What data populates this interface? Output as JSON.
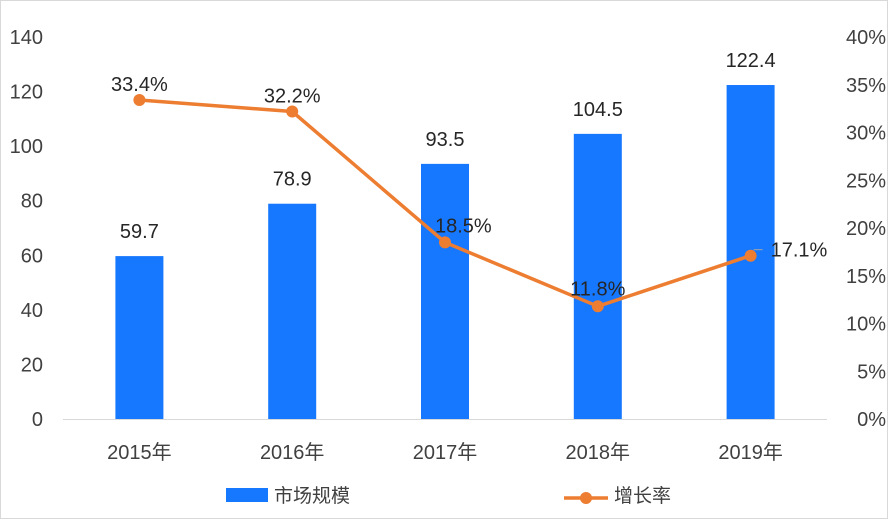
{
  "chart_data": {
    "type": "bar",
    "categories": [
      "2015年",
      "2016年",
      "2017年",
      "2018年",
      "2019年"
    ],
    "series": [
      {
        "name": "市场规模",
        "type": "bar",
        "axis": "left",
        "color": "#1677ff",
        "values": [
          59.7,
          78.9,
          93.5,
          104.5,
          122.4
        ],
        "labels": [
          "59.7",
          "78.9",
          "93.5",
          "104.5",
          "122.4"
        ]
      },
      {
        "name": "增长率",
        "type": "line",
        "axis": "right",
        "color": "#ed7d31",
        "values": [
          33.4,
          32.2,
          18.5,
          11.8,
          17.1
        ],
        "labels": [
          "33.4%",
          "32.2%",
          "18.5%",
          "11.8%",
          "17.1%"
        ]
      }
    ],
    "y_left": {
      "ylim": [
        0,
        140
      ],
      "ticks": [
        "0",
        "20",
        "40",
        "60",
        "80",
        "100",
        "120",
        "140"
      ]
    },
    "y_right": {
      "ylim": [
        0,
        40
      ],
      "ticks": [
        "0%",
        "5%",
        "10%",
        "15%",
        "20%",
        "25%",
        "30%",
        "35%",
        "40%"
      ]
    },
    "legend": "bottom",
    "grid": false
  }
}
